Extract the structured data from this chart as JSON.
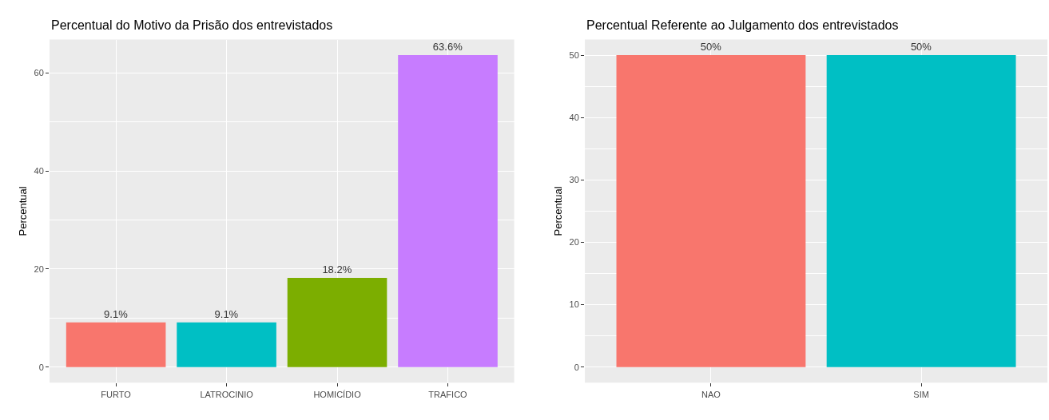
{
  "chart_data": [
    {
      "type": "bar",
      "title": "Percentual do Motivo da Prisão dos entrevistados",
      "ylabel": "Percentual",
      "categories": [
        "FURTO",
        "LATROCINIO",
        "HOMICÍDIO",
        "TRAFICO"
      ],
      "values": [
        9.1,
        9.1,
        18.2,
        63.6
      ],
      "colors": [
        "#f8766d",
        "#00bfc4",
        "#7cae00",
        "#c77cff"
      ],
      "value_labels": [
        "9.1%",
        "9.1%",
        "18.2%",
        "63.6%"
      ],
      "ylim": [
        -3.18,
        66.78
      ],
      "yticks": [
        0,
        20,
        40,
        60
      ],
      "grid": true,
      "legend": false
    },
    {
      "type": "bar",
      "title": "Percentual Referente ao Julgamento dos entrevistados",
      "ylabel": "Percentual",
      "categories": [
        "NAO",
        "SIM"
      ],
      "values": [
        50,
        50
      ],
      "colors": [
        "#f8766d",
        "#00bfc4"
      ],
      "value_labels": [
        "50%",
        "50%"
      ],
      "ylim": [
        -2.5,
        52.5
      ],
      "yticks": [
        0,
        10,
        20,
        30,
        40,
        50
      ],
      "grid": true,
      "legend": false
    }
  ]
}
